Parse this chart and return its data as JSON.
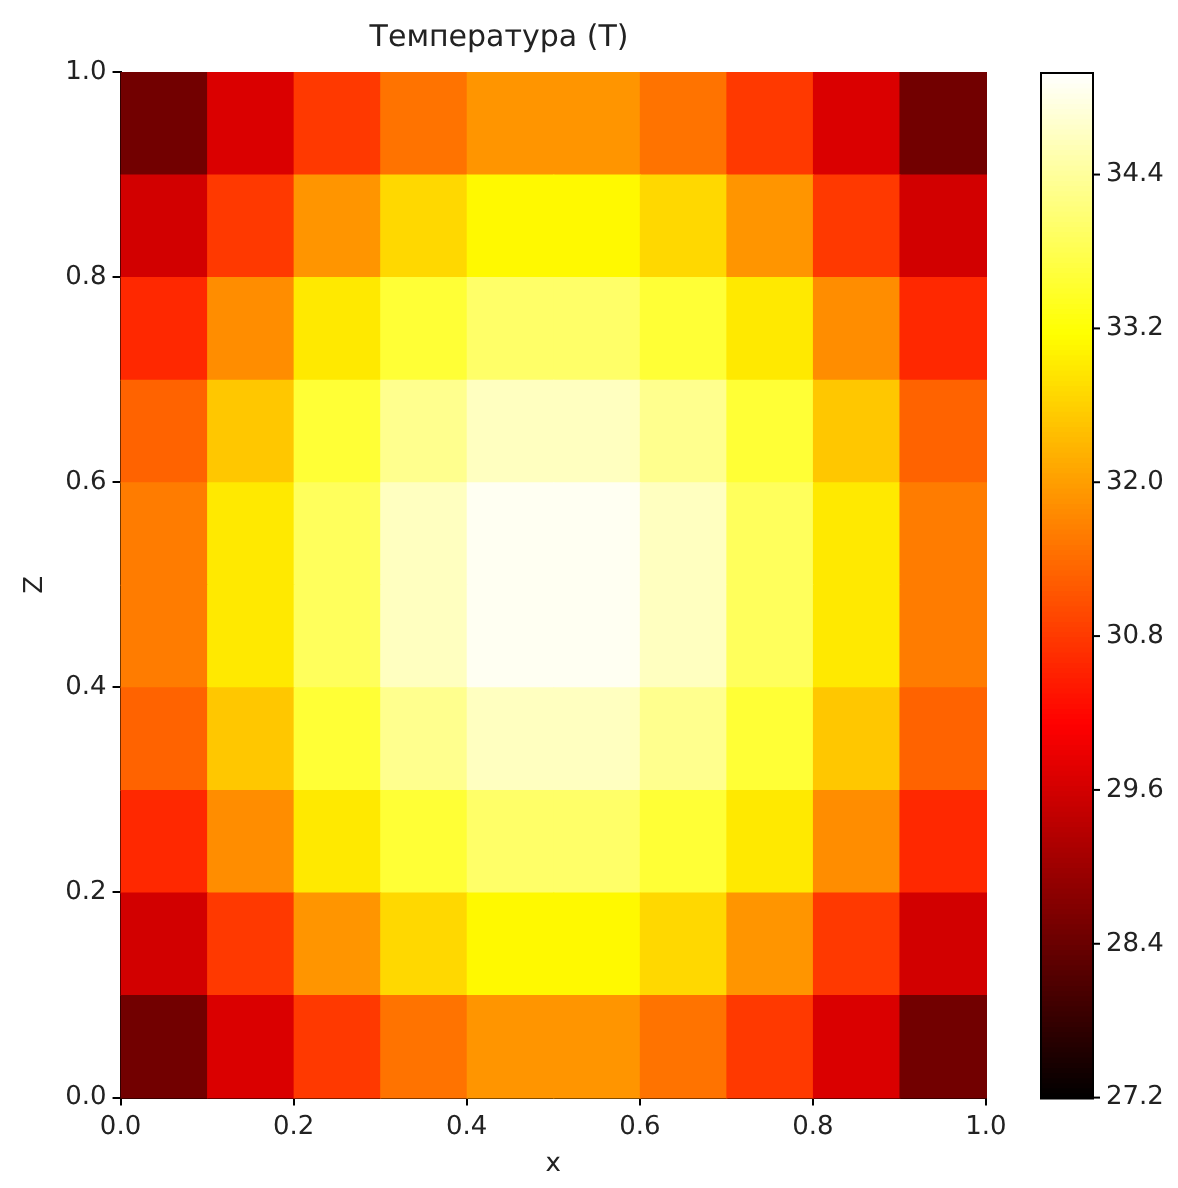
{
  "chart_data": {
    "type": "heatmap",
    "title": "Температура (T)",
    "xlabel": "x",
    "ylabel": "Z",
    "x": [
      0.05,
      0.15,
      0.25,
      0.35,
      0.45,
      0.55,
      0.65,
      0.75,
      0.85,
      0.95
    ],
    "y": [
      0.95,
      0.85,
      0.75,
      0.65,
      0.55,
      0.45,
      0.35,
      0.25,
      0.15,
      0.05
    ],
    "xlim": [
      0,
      1
    ],
    "ylim": [
      0,
      1
    ],
    "xticks": [
      {
        "value": 0,
        "label": "0.0"
      },
      0.2,
      0.4,
      0.6,
      0.8,
      {
        "value": 1,
        "label": "1.0"
      }
    ],
    "yticks": [
      {
        "value": 0,
        "label": "0.0"
      },
      0.2,
      0.4,
      0.6,
      0.8,
      {
        "value": 1,
        "label": "1.0"
      }
    ],
    "clim": [
      27.2,
      35.2
    ],
    "cticks": [
      27.2,
      28.4,
      29.6,
      30.8,
      {
        "value": 32,
        "label": "32.0"
      },
      33.2,
      34.4
    ],
    "cells": [
      [
        28.5,
        29.7,
        30.8,
        31.5,
        31.9,
        31.9,
        31.5,
        30.8,
        29.7,
        28.5
      ],
      [
        29.6,
        30.8,
        31.9,
        32.7,
        33.1,
        33.1,
        32.7,
        31.9,
        30.8,
        29.6
      ],
      [
        30.6,
        31.8,
        32.9,
        33.6,
        34.0,
        34.0,
        33.6,
        32.9,
        31.8,
        30.6
      ],
      [
        31.3,
        32.5,
        33.6,
        34.3,
        34.7,
        34.7,
        34.3,
        33.6,
        32.5,
        31.3
      ],
      [
        31.6,
        32.9,
        33.9,
        34.7,
        35.1,
        35.1,
        34.7,
        33.9,
        32.9,
        31.6
      ],
      [
        31.6,
        32.9,
        33.9,
        34.7,
        35.1,
        35.1,
        34.7,
        33.9,
        32.9,
        31.6
      ],
      [
        31.3,
        32.5,
        33.6,
        34.3,
        34.7,
        34.7,
        34.3,
        33.6,
        32.5,
        31.3
      ],
      [
        30.6,
        31.8,
        32.9,
        33.6,
        34.0,
        34.0,
        33.6,
        32.9,
        31.8,
        30.6
      ],
      [
        29.6,
        30.8,
        31.9,
        32.7,
        33.1,
        33.1,
        32.7,
        31.9,
        30.8,
        29.6
      ],
      [
        28.5,
        29.7,
        30.8,
        31.5,
        31.9,
        31.9,
        31.5,
        30.8,
        29.7,
        28.5
      ]
    ]
  }
}
